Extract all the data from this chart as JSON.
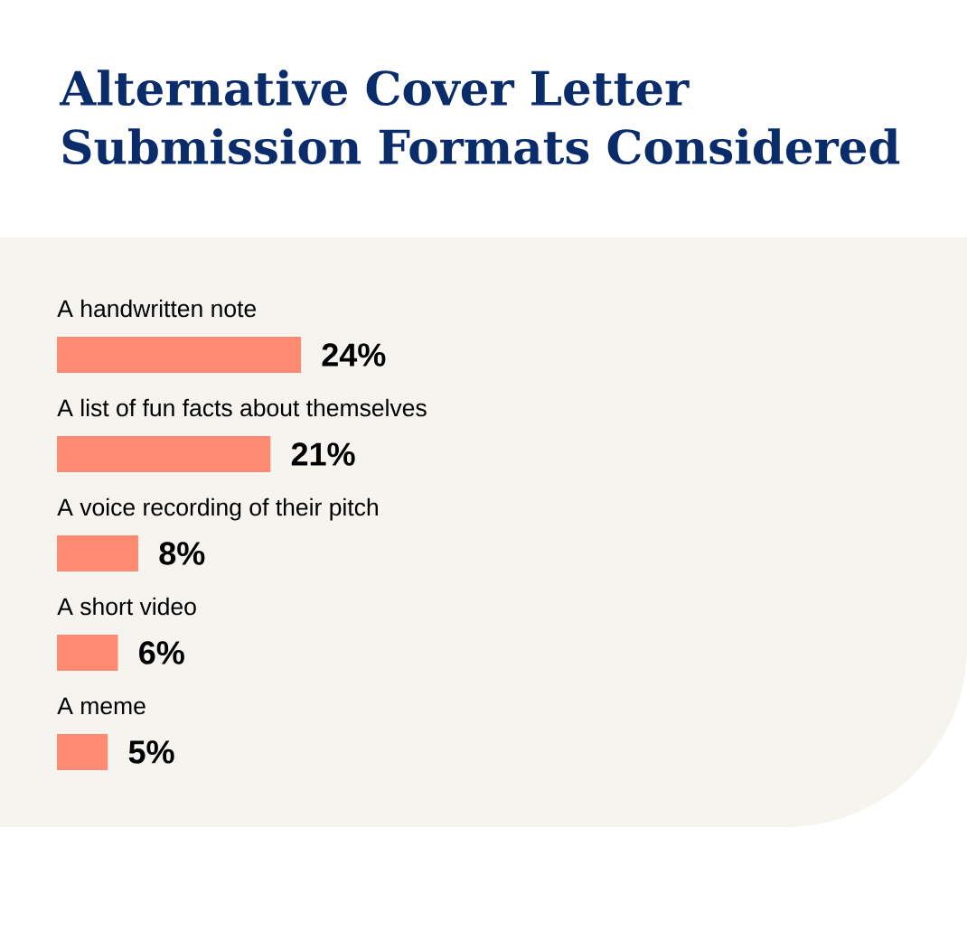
{
  "chart_data": {
    "type": "bar",
    "orientation": "horizontal",
    "title": "Alternative Cover Letter Submission Formats Considered",
    "categories": [
      "A handwritten note",
      "A list of fun facts about themselves",
      "A voice recording of their pitch",
      "A short video",
      "A meme"
    ],
    "values": [
      24,
      21,
      8,
      6,
      5
    ],
    "value_labels": [
      "24%",
      "21%",
      "8%",
      "6%",
      "5%"
    ],
    "color": "#ff8a72",
    "tick_labels": "y"
  }
}
